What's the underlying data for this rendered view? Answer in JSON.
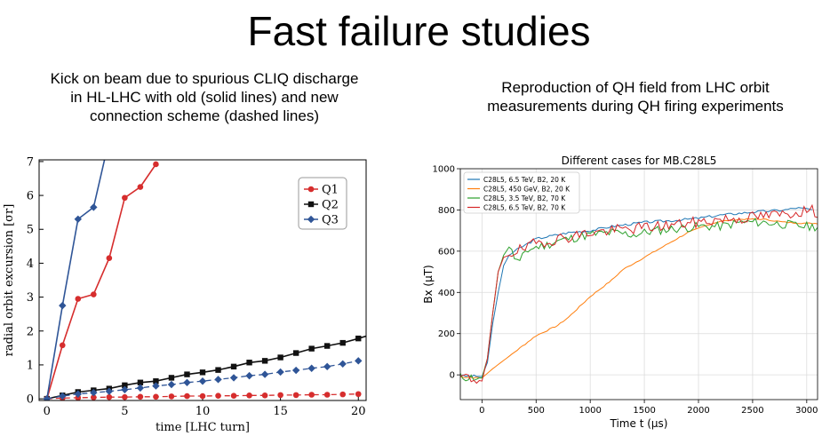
{
  "slide": {
    "title": "Fast failure studies",
    "left_caption": [
      "Kick on beam due to spurious CLIQ discharge",
      "in HL-LHC with old (solid lines) and new",
      "connection scheme (dashed lines)"
    ],
    "right_caption": [
      "Reproduction of QH field from LHC orbit",
      "measurements during QH firing experiments"
    ]
  },
  "chart_data": [
    {
      "type": "line",
      "title": "",
      "xlabel": "time [LHC turn]",
      "ylabel": "radial orbit excursion [σr]",
      "xlim": [
        -0.5,
        20.5
      ],
      "ylim": [
        -0.05,
        7.05
      ],
      "xticks": [
        0,
        5,
        10,
        15,
        20
      ],
      "yticks": [
        0,
        1,
        2,
        3,
        4,
        5,
        6,
        7
      ],
      "legend_position": "top-right",
      "grid": false,
      "series": [
        {
          "name": "Q1",
          "color": "#d62d2d",
          "marker": "circle",
          "style": "solid",
          "x": [
            0,
            1,
            2,
            3,
            4,
            5,
            6,
            7
          ],
          "y": [
            0,
            1.58,
            2.95,
            3.08,
            4.15,
            5.93,
            6.25,
            6.92
          ]
        },
        {
          "name": "Q2",
          "color": "#111111",
          "marker": "square",
          "style": "solid",
          "x": [
            0,
            1,
            2,
            3,
            4,
            5,
            6,
            7,
            8,
            9,
            10,
            11,
            12,
            13,
            14,
            15,
            16,
            17,
            18,
            19,
            20,
            20.5
          ],
          "y": [
            0,
            0.1,
            0.2,
            0.25,
            0.3,
            0.4,
            0.48,
            0.52,
            0.62,
            0.72,
            0.78,
            0.85,
            0.95,
            1.07,
            1.12,
            1.22,
            1.35,
            1.48,
            1.56,
            1.65,
            1.78,
            1.85
          ]
        },
        {
          "name": "Q3",
          "color": "#2f5597",
          "marker": "diamond",
          "style": "solid",
          "x": [
            0,
            1,
            2,
            3,
            3.7
          ],
          "y": [
            0,
            2.75,
            5.3,
            5.65,
            7.05
          ]
        },
        {
          "name": "",
          "color": "#d62d2d",
          "marker": "circle",
          "style": "dashed",
          "x": [
            0,
            1,
            2,
            3,
            4,
            5,
            6,
            7,
            8,
            9,
            10,
            11,
            12,
            13,
            14,
            15,
            16,
            17,
            18,
            19,
            20
          ],
          "y": [
            0,
            0.02,
            0.03,
            0.04,
            0.05,
            0.05,
            0.06,
            0.06,
            0.07,
            0.08,
            0.08,
            0.09,
            0.09,
            0.1,
            0.1,
            0.11,
            0.11,
            0.12,
            0.12,
            0.13,
            0.14
          ]
        },
        {
          "name": "",
          "color": "#2f5597",
          "marker": "diamond",
          "style": "dashed",
          "x": [
            0,
            1,
            2,
            3,
            4,
            5,
            6,
            7,
            8,
            9,
            10,
            11,
            12,
            13,
            14,
            15,
            16,
            17,
            18,
            19,
            20
          ],
          "y": [
            0,
            0.08,
            0.14,
            0.18,
            0.22,
            0.27,
            0.32,
            0.38,
            0.42,
            0.48,
            0.52,
            0.57,
            0.62,
            0.68,
            0.72,
            0.79,
            0.84,
            0.9,
            0.95,
            1.03,
            1.12
          ]
        }
      ]
    },
    {
      "type": "line",
      "title": "Different cases for MB.C28L5",
      "xlabel": "Time t (μs)",
      "ylabel": "Bx (μT)",
      "xlim": [
        -200,
        3100
      ],
      "ylim": [
        -120,
        1000
      ],
      "xticks": [
        0,
        500,
        1000,
        1500,
        2000,
        2500,
        3000
      ],
      "yticks": [
        0,
        200,
        400,
        600,
        800,
        1000
      ],
      "legend_position": "top-left",
      "grid": true,
      "series": [
        {
          "name": "C28L5, 6.5 TeV, B2, 20 K",
          "color": "#1f77b4",
          "noise": 6,
          "seed": 3,
          "x": [
            -200,
            0,
            50,
            100,
            150,
            200,
            250,
            300,
            400,
            500,
            600,
            700,
            800,
            1000,
            1200,
            1500,
            1800,
            2000,
            2200,
            2500,
            2800,
            2900,
            3000,
            3050
          ],
          "y": [
            -5,
            -8,
            60,
            250,
            400,
            530,
            580,
            600,
            630,
            660,
            670,
            680,
            690,
            700,
            720,
            740,
            750,
            760,
            775,
            790,
            800,
            810,
            805,
            800
          ]
        },
        {
          "name": "C28L5, 450 GeV, B2, 20 K",
          "color": "#ff7f0e",
          "noise": 3,
          "seed": 7,
          "x": [
            -200,
            0,
            100,
            200,
            300,
            400,
            500,
            600,
            700,
            800,
            900,
            1000,
            1100,
            1200,
            1300,
            1400,
            1500,
            1600,
            1700,
            1800,
            1900,
            2000,
            2100,
            2200,
            2400,
            2600,
            2800,
            3000,
            3100
          ],
          "y": [
            -10,
            -15,
            30,
            70,
            110,
            150,
            190,
            215,
            240,
            280,
            330,
            380,
            420,
            460,
            510,
            540,
            570,
            600,
            630,
            660,
            690,
            710,
            730,
            745,
            755,
            755,
            740,
            735,
            735
          ]
        },
        {
          "name": "C28L5, 3.5 TeV, B2, 70 K",
          "color": "#2ca02c",
          "noise": 22,
          "seed": 11,
          "x": [
            -200,
            0,
            50,
            100,
            150,
            200,
            250,
            300,
            350,
            400,
            500,
            600,
            700,
            800,
            900,
            1000,
            1200,
            1400,
            1600,
            1800,
            2000,
            2200,
            2400,
            2600,
            2800,
            3000,
            3100
          ],
          "y": [
            -10,
            -15,
            80,
            300,
            500,
            580,
            620,
            570,
            540,
            600,
            620,
            630,
            650,
            660,
            670,
            680,
            690,
            680,
            700,
            710,
            720,
            720,
            740,
            740,
            730,
            720,
            720
          ]
        },
        {
          "name": "C28L5, 6.5 TeV, B2, 70 K",
          "color": "#d62728",
          "noise": 28,
          "seed": 19,
          "x": [
            -200,
            0,
            50,
            100,
            150,
            200,
            250,
            300,
            400,
            500,
            600,
            700,
            800,
            900,
            1000,
            1200,
            1400,
            1600,
            1800,
            2000,
            2200,
            2400,
            2600,
            2800,
            2900,
            3000,
            3100
          ],
          "y": [
            -10,
            -30,
            80,
            300,
            500,
            570,
            580,
            600,
            610,
            640,
            650,
            660,
            670,
            680,
            690,
            700,
            710,
            720,
            730,
            740,
            755,
            760,
            770,
            780,
            790,
            800,
            790
          ]
        }
      ]
    }
  ]
}
